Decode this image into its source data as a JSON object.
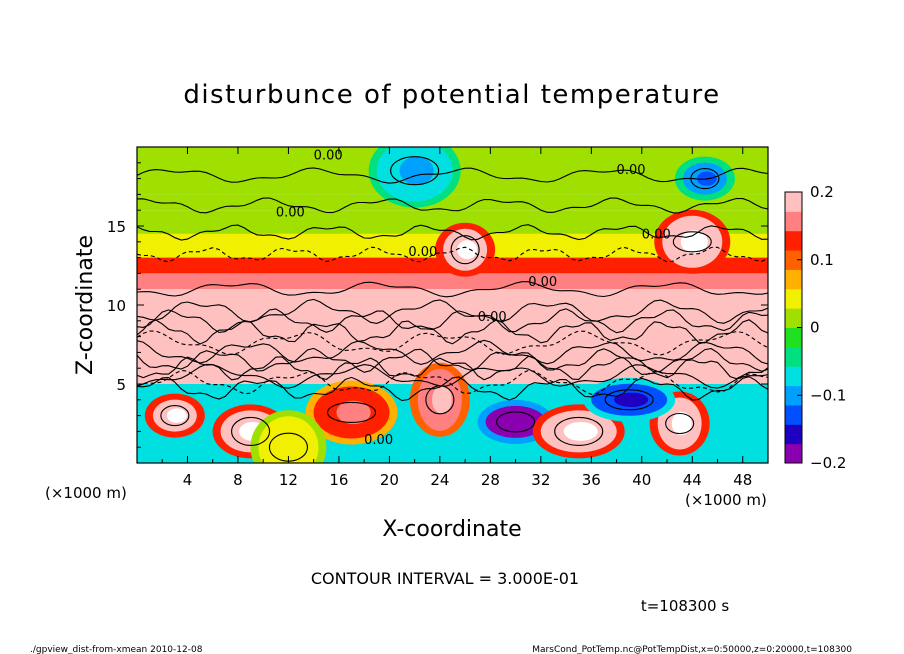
{
  "chart_data": {
    "type": "heatmap",
    "title": "disturbunce of potential temperature",
    "xlabel": "X-coordinate",
    "ylabel": "Z-coordinate",
    "x_unit_left": "(×1000 m)",
    "x_unit_right": "(×1000 m)",
    "xlim": [
      0,
      50
    ],
    "ylim": [
      0,
      20
    ],
    "xticks": [
      "4",
      "8",
      "12",
      "16",
      "20",
      "24",
      "28",
      "32",
      "36",
      "40",
      "44",
      "48"
    ],
    "xtick_values": [
      4,
      8,
      12,
      16,
      20,
      24,
      28,
      32,
      36,
      40,
      44,
      48
    ],
    "yticks": [
      "5",
      "10",
      "15"
    ],
    "ytick_values": [
      5,
      10,
      15
    ],
    "colorbar": {
      "ticks": [
        "0.2",
        "0.1",
        "0",
        "−0.1",
        "−0.2"
      ],
      "tick_values": [
        0.2,
        0.1,
        0,
        -0.1,
        -0.2
      ],
      "range": [
        -0.2,
        0.2
      ],
      "colors": [
        "#8a00b0",
        "#2000c0",
        "#0050ff",
        "#00a0ff",
        "#00e0e0",
        "#00e080",
        "#20e020",
        "#a0e000",
        "#f0f000",
        "#ffb000",
        "#ff6000",
        "#ff2000",
        "#ff8080",
        "#ffc0c0"
      ]
    },
    "contour_labels": [
      "0.00",
      "0.00",
      "0.00",
      "0.00",
      "0.00",
      "0.00",
      "0.00",
      "0.00"
    ],
    "bands": [
      {
        "z0": 17.0,
        "z1": 20.0,
        "value": 0.0
      },
      {
        "z0": 16.0,
        "z1": 17.0,
        "value": 0.02
      },
      {
        "z0": 14.5,
        "z1": 16.0,
        "value": 0.01
      },
      {
        "z0": 13.0,
        "z1": 14.5,
        "value": 0.04
      },
      {
        "z0": 12.0,
        "z1": 13.0,
        "value": 0.14
      },
      {
        "z0": 11.0,
        "z1": 12.0,
        "value": 0.17
      },
      {
        "z0": 10.0,
        "z1": 11.0,
        "value": 0.21
      },
      {
        "z0": 7.5,
        "z1": 10.0,
        "value": 0.19
      },
      {
        "z0": 5.0,
        "z1": 7.5,
        "value": 0.22
      },
      {
        "z0": 0.0,
        "z1": 5.0,
        "value": -0.07
      }
    ],
    "blobs": [
      {
        "x": 3,
        "z": 3,
        "value": 0.21
      },
      {
        "x": 9,
        "z": 2,
        "value": 0.21
      },
      {
        "x": 17,
        "z": 3.2,
        "value": 0.12
      },
      {
        "x": 24,
        "z": 4,
        "value": 0.15
      },
      {
        "x": 30,
        "z": 2.6,
        "value": -0.18
      },
      {
        "x": 35,
        "z": 2,
        "value": 0.22
      },
      {
        "x": 43,
        "z": 2.5,
        "value": 0.2
      },
      {
        "x": 12,
        "z": 1,
        "value": 0.03
      },
      {
        "x": 39,
        "z": 4,
        "value": -0.12
      },
      {
        "x": 26,
        "z": 13.5,
        "value": 0.21
      },
      {
        "x": 44,
        "z": 14,
        "value": 0.22
      },
      {
        "x": 22,
        "z": 18.5,
        "value": -0.08
      },
      {
        "x": 45,
        "z": 18,
        "value": -0.09
      }
    ]
  },
  "contour_interval": "CONTOUR INTERVAL = 3.000E-01",
  "time_label": "t=108300  s",
  "footer_left": "./gpview_dist-from-xmean  2010-12-08",
  "footer_right": "MarsCond_PotTemp.nc@PotTempDist,x=0:50000,z=0:20000,t=108300"
}
